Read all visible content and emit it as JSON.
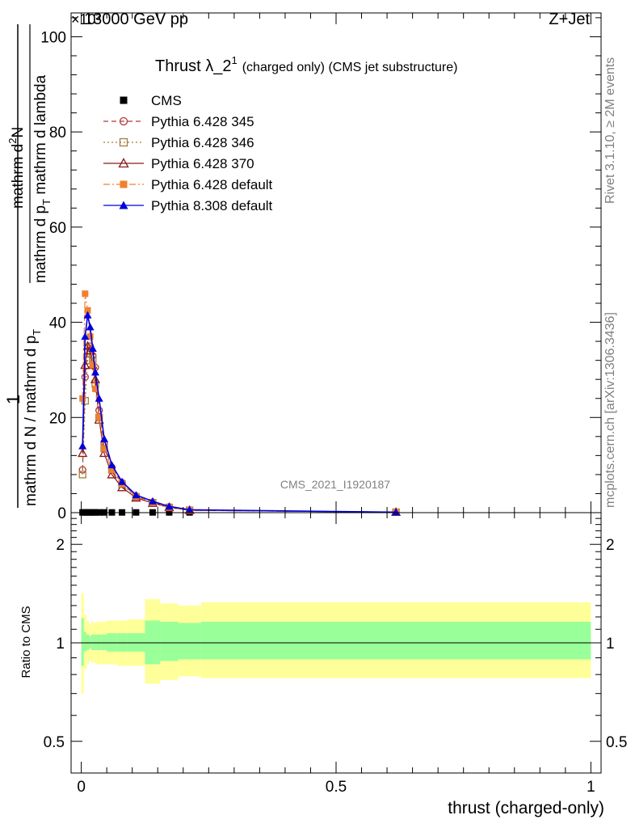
{
  "header": {
    "left": "13000 GeV pp",
    "right": "Z+Jet",
    "exponent": "×10³"
  },
  "plot_title": {
    "main": "Thrust λ_2",
    "superscript": "1",
    "detail": "(charged only) (CMS jet substructure)"
  },
  "watermark": "CMS_2021_I1920187",
  "side_text": {
    "upper": "Rivet 3.1.10, ≥ 2M events",
    "lower": "mcplots.cern.ch [arXiv:1306.3436]"
  },
  "y_axis": {
    "frac_one": "1",
    "frac_denominator": "mathrm d N / mathrm d p",
    "frac_denominator_sub": "T",
    "frac_numerator_a": "mathrm d",
    "frac_numerator_sup": "2",
    "frac_numerator_b": "N",
    "frac_numerator_line2": "mathrm d p",
    "frac_numerator_line2_sub": "T",
    "frac_numerator_line2_end": " mathrm d lambda",
    "ratio_label": "Ratio to CMS"
  },
  "x_axis_label": "thrust (charged-only)",
  "legend": [
    {
      "label": "CMS",
      "color": "#000000",
      "marker": "filled-square",
      "line": "none"
    },
    {
      "label": "Pythia 6.428 345",
      "color": "#b03838",
      "marker": "open-circle",
      "line": "dashed"
    },
    {
      "label": "Pythia 6.428 346",
      "color": "#a08040",
      "marker": "open-square",
      "line": "dotted"
    },
    {
      "label": "Pythia 6.428 370",
      "color": "#8b1a1a",
      "marker": "open-triangle",
      "line": "solid"
    },
    {
      "label": "Pythia 6.428 default",
      "color": "#f08030",
      "marker": "filled-square",
      "line": "dashdot"
    },
    {
      "label": "Pythia 8.308 default",
      "color": "#0000dd",
      "marker": "filled-triangle",
      "line": "solid"
    }
  ],
  "chart_data": [
    {
      "type": "line",
      "panel": "main",
      "x_ticks": [
        0,
        0.5,
        1
      ],
      "x_tick_labels": [
        "0",
        "0.5",
        "1"
      ],
      "xlim": [
        -0.02,
        1.02
      ],
      "y_ticks": [
        0,
        20,
        40,
        60,
        80,
        100
      ],
      "y_tick_labels": [
        "0",
        "20",
        "40",
        "60",
        "80",
        "100"
      ],
      "ylim": [
        0,
        105
      ],
      "y_scale_note": "×10³",
      "x": [
        0.0025,
        0.0075,
        0.0125,
        0.0175,
        0.0225,
        0.0275,
        0.035,
        0.045,
        0.06,
        0.08,
        0.1075,
        0.14,
        0.1725,
        0.2125,
        0.6175
      ],
      "series": [
        {
          "name": "CMS",
          "values": [
            0.05,
            0.05,
            0.05,
            0.05,
            0.05,
            0.05,
            0.05,
            0.05,
            0.05,
            0.05,
            0.05,
            0.05,
            0.05,
            0.05,
            0.05
          ]
        },
        {
          "name": "Pythia 6.428 345",
          "values": [
            9.0,
            28.5,
            34.0,
            35.0,
            33.0,
            30.5,
            21.5,
            14.5,
            9.5,
            6.3,
            3.5,
            2.2,
            1.2,
            0.5,
            0.1
          ]
        },
        {
          "name": "Pythia 6.428 346",
          "values": [
            8.0,
            23.5,
            32.0,
            34.5,
            32.0,
            27.0,
            20.0,
            13.5,
            9.0,
            6.0,
            3.3,
            2.1,
            1.1,
            0.5,
            0.1
          ]
        },
        {
          "name": "Pythia 6.428 370",
          "values": [
            12.5,
            31.0,
            35.0,
            34.0,
            31.0,
            28.0,
            19.5,
            12.5,
            8.0,
            5.3,
            3.1,
            2.0,
            1.1,
            0.5,
            0.1
          ]
        },
        {
          "name": "Pythia 6.428 default",
          "values": [
            24.0,
            46.0,
            42.5,
            37.0,
            31.0,
            26.0,
            20.0,
            13.5,
            9.0,
            6.0,
            3.4,
            2.1,
            1.1,
            0.5,
            0.1
          ]
        },
        {
          "name": "Pythia 8.308 default",
          "values": [
            14.0,
            37.0,
            41.5,
            39.0,
            34.5,
            29.5,
            24.0,
            15.5,
            10.0,
            6.5,
            3.7,
            2.4,
            1.3,
            0.6,
            0.1
          ]
        }
      ]
    },
    {
      "type": "area",
      "panel": "ratio",
      "ylabel": "Ratio to CMS",
      "y_scale": "log",
      "ylim": [
        0.4,
        2.5
      ],
      "y_ticks": [
        0.5,
        1,
        2
      ],
      "y_tick_labels": [
        "0.5",
        "1",
        "2"
      ],
      "xlim": [
        -0.02,
        1.02
      ],
      "x_ticks": [
        0,
        0.5,
        1
      ],
      "x_tick_labels": [
        "0",
        "0.5",
        "1"
      ],
      "bin_edges": [
        0,
        0.005,
        0.01,
        0.015,
        0.02,
        0.025,
        0.03,
        0.04,
        0.05,
        0.07,
        0.09,
        0.125,
        0.155,
        0.19,
        0.235,
        1.0
      ],
      "band_yellow_up": [
        1.42,
        1.22,
        1.17,
        1.14,
        1.16,
        1.15,
        1.16,
        1.16,
        1.17,
        1.17,
        1.18,
        1.36,
        1.32,
        1.3,
        1.33
      ],
      "band_yellow_down": [
        0.7,
        0.83,
        0.86,
        0.88,
        0.87,
        0.87,
        0.86,
        0.86,
        0.86,
        0.85,
        0.85,
        0.75,
        0.77,
        0.79,
        0.78
      ],
      "band_green_up": [
        1.19,
        1.08,
        1.06,
        1.05,
        1.06,
        1.06,
        1.06,
        1.06,
        1.07,
        1.07,
        1.07,
        1.17,
        1.16,
        1.15,
        1.16
      ],
      "band_green_down": [
        0.85,
        0.94,
        0.95,
        0.96,
        0.95,
        0.95,
        0.95,
        0.95,
        0.94,
        0.94,
        0.94,
        0.86,
        0.88,
        0.89,
        0.89
      ],
      "reference_line": 1
    }
  ]
}
